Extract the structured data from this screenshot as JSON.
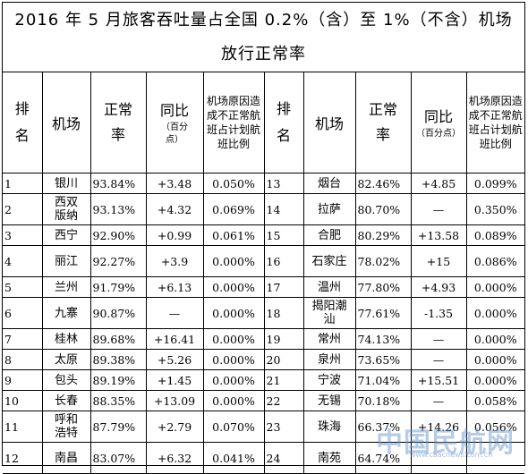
{
  "title": "2016 年 5 月旅客吞吐量占全国 0.2%（含）至 1%（不含）机场放行正常率",
  "headers": {
    "rank": "排名",
    "airport": "机场",
    "rate": "正常率",
    "yoy": "同比",
    "yoy_unit": "（百分点）",
    "pct": "机场原因造成不正常航班占计划航班比例"
  },
  "rows": [
    {
      "l_rank": "1",
      "l_city": "银川",
      "l_rate": "93.84%",
      "l_yoy": "+3.48",
      "l_pct": "0.050%",
      "r_rank": "13",
      "r_city": "烟台",
      "r_rate": "82.46%",
      "r_yoy": "+4.85",
      "r_pct": "0.099%"
    },
    {
      "l_rank": "2",
      "l_city": "西双版纳",
      "l_rate": "93.13%",
      "l_yoy": "+4.32",
      "l_pct": "0.069%",
      "r_rank": "14",
      "r_city": "拉萨",
      "r_rate": "80.70%",
      "r_yoy": "—",
      "r_pct": "0.350%"
    },
    {
      "l_rank": "3",
      "l_city": "西宁",
      "l_rate": "92.90%",
      "l_yoy": "+0.99",
      "l_pct": "0.061%",
      "r_rank": "15",
      "r_city": "合肥",
      "r_rate": "80.29%",
      "r_yoy": "+13.58",
      "r_pct": "0.089%"
    },
    {
      "l_rank": "4",
      "l_city": "丽江",
      "l_rate": "92.27%",
      "l_yoy": "+3.9",
      "l_pct": "0.000%",
      "r_rank": "16",
      "r_city": "石家庄",
      "r_rate": "78.02%",
      "r_yoy": "+15",
      "r_pct": "0.086%"
    },
    {
      "l_rank": "5",
      "l_city": "兰州",
      "l_rate": "91.79%",
      "l_yoy": "+6.13",
      "l_pct": "0.000%",
      "r_rank": "17",
      "r_city": "温州",
      "r_rate": "77.80%",
      "r_yoy": "+4.93",
      "r_pct": "0.000%"
    },
    {
      "l_rank": "6",
      "l_city": "九寨",
      "l_rate": "90.87%",
      "l_yoy": "—",
      "l_pct": "0.000%",
      "r_rank": "18",
      "r_city": "揭阳潮汕",
      "r_rate": "77.61%",
      "r_yoy": "-1.35",
      "r_pct": "0.000%"
    },
    {
      "l_rank": "7",
      "l_city": "桂林",
      "l_rate": "89.68%",
      "l_yoy": "+16.41",
      "l_pct": "0.000%",
      "r_rank": "19",
      "r_city": "常州",
      "r_rate": "74.13%",
      "r_yoy": "—",
      "r_pct": "0.000%"
    },
    {
      "l_rank": "8",
      "l_city": "太原",
      "l_rate": "89.38%",
      "l_yoy": "+5.26",
      "l_pct": "0.000%",
      "r_rank": "20",
      "r_city": "泉州",
      "r_rate": "73.65%",
      "r_yoy": "—",
      "r_pct": "0.000%"
    },
    {
      "l_rank": "9",
      "l_city": "包头",
      "l_rate": "89.19%",
      "l_yoy": "+1.45",
      "l_pct": "0.000%",
      "r_rank": "21",
      "r_city": "宁波",
      "r_rate": "71.04%",
      "r_yoy": "+15.51",
      "r_pct": "0.000%"
    },
    {
      "l_rank": "10",
      "l_city": "长春",
      "l_rate": "88.35%",
      "l_yoy": "+13.09",
      "l_pct": "0.000%",
      "r_rank": "22",
      "r_city": "无锡",
      "r_rate": "70.18%",
      "r_yoy": "—",
      "r_pct": "0.058%"
    },
    {
      "l_rank": "11",
      "l_city": "呼和浩特",
      "l_rate": "87.79%",
      "l_yoy": "+2.79",
      "l_pct": "0.070%",
      "r_rank": "23",
      "r_city": "珠海",
      "r_rate": "66.37%",
      "r_yoy": "+14.26",
      "r_pct": "0.056%"
    },
    {
      "l_rank": "12",
      "l_city": "南昌",
      "l_rate": "83.07%",
      "l_yoy": "+6.32",
      "l_pct": "0.041%",
      "r_rank": "24",
      "r_city": "南苑",
      "r_rate": "64.74%",
      "r_yoy": "",
      "r_pct": ""
    }
  ],
  "watermark": {
    "main": "中国民航网",
    "url": "www.caacnews.com.cn"
  }
}
